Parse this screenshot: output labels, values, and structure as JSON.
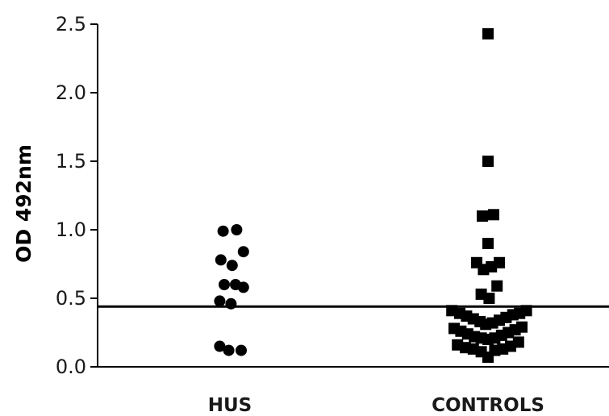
{
  "chart_data": {
    "type": "scatter",
    "ylabel": "OD 492nm",
    "xlabel": "",
    "ylim": [
      0,
      2.5
    ],
    "yticks": [
      {
        "value": 0.0,
        "label": "0.0"
      },
      {
        "value": 0.5,
        "label": "0.5"
      },
      {
        "value": 1.0,
        "label": "1.0"
      },
      {
        "value": 1.5,
        "label": "1.5"
      },
      {
        "value": 2.0,
        "label": "2.0"
      },
      {
        "value": 2.5,
        "label": "2.5"
      }
    ],
    "categories": [
      "HUS",
      "CONTROLS"
    ],
    "cutoff_line": 0.44,
    "grid": false,
    "series": [
      {
        "category": "HUS",
        "marker": "circle",
        "points": [
          {
            "dx": -0.6,
            "y": 0.99
          },
          {
            "dx": 0.6,
            "y": 1.0
          },
          {
            "dx": -0.8,
            "y": 0.78
          },
          {
            "dx": 0.2,
            "y": 0.74
          },
          {
            "dx": 1.2,
            "y": 0.84
          },
          {
            "dx": -0.5,
            "y": 0.6
          },
          {
            "dx": 0.5,
            "y": 0.6
          },
          {
            "dx": 1.2,
            "y": 0.58
          },
          {
            "dx": -0.9,
            "y": 0.48
          },
          {
            "dx": 0.1,
            "y": 0.46
          },
          {
            "dx": -0.9,
            "y": 0.15
          },
          {
            "dx": -0.1,
            "y": 0.12
          },
          {
            "dx": 1.0,
            "y": 0.12
          }
        ]
      },
      {
        "category": "CONTROLS",
        "marker": "square",
        "points": [
          {
            "dx": 0.0,
            "y": 2.43
          },
          {
            "dx": 0.0,
            "y": 1.5
          },
          {
            "dx": -0.5,
            "y": 1.1
          },
          {
            "dx": 0.5,
            "y": 1.11
          },
          {
            "dx": 0.0,
            "y": 0.9
          },
          {
            "dx": -1.0,
            "y": 0.76
          },
          {
            "dx": -0.4,
            "y": 0.71
          },
          {
            "dx": 0.3,
            "y": 0.73
          },
          {
            "dx": 1.0,
            "y": 0.76
          },
          {
            "dx": -0.6,
            "y": 0.53
          },
          {
            "dx": 0.1,
            "y": 0.5
          },
          {
            "dx": 0.8,
            "y": 0.59
          },
          {
            "dx": -3.2,
            "y": 0.41
          },
          {
            "dx": -2.5,
            "y": 0.39
          },
          {
            "dx": -1.9,
            "y": 0.37
          },
          {
            "dx": -1.3,
            "y": 0.35
          },
          {
            "dx": -0.7,
            "y": 0.33
          },
          {
            "dx": -0.2,
            "y": 0.31
          },
          {
            "dx": 0.4,
            "y": 0.32
          },
          {
            "dx": 1.0,
            "y": 0.34
          },
          {
            "dx": 1.6,
            "y": 0.36
          },
          {
            "dx": 2.2,
            "y": 0.38
          },
          {
            "dx": 2.8,
            "y": 0.39
          },
          {
            "dx": 3.4,
            "y": 0.41
          },
          {
            "dx": -3.0,
            "y": 0.28
          },
          {
            "dx": -2.4,
            "y": 0.26
          },
          {
            "dx": -1.8,
            "y": 0.24
          },
          {
            "dx": -1.2,
            "y": 0.22
          },
          {
            "dx": -0.6,
            "y": 0.21
          },
          {
            "dx": 0.0,
            "y": 0.2
          },
          {
            "dx": 0.6,
            "y": 0.21
          },
          {
            "dx": 1.2,
            "y": 0.23
          },
          {
            "dx": 1.8,
            "y": 0.25
          },
          {
            "dx": 2.4,
            "y": 0.27
          },
          {
            "dx": 3.0,
            "y": 0.29
          },
          {
            "dx": -2.7,
            "y": 0.16
          },
          {
            "dx": -2.0,
            "y": 0.14
          },
          {
            "dx": -1.3,
            "y": 0.13
          },
          {
            "dx": -0.6,
            "y": 0.11
          },
          {
            "dx": 0.0,
            "y": 0.07
          },
          {
            "dx": 0.6,
            "y": 0.12
          },
          {
            "dx": 1.3,
            "y": 0.13
          },
          {
            "dx": 2.0,
            "y": 0.15
          },
          {
            "dx": 2.7,
            "y": 0.18
          }
        ]
      }
    ]
  }
}
